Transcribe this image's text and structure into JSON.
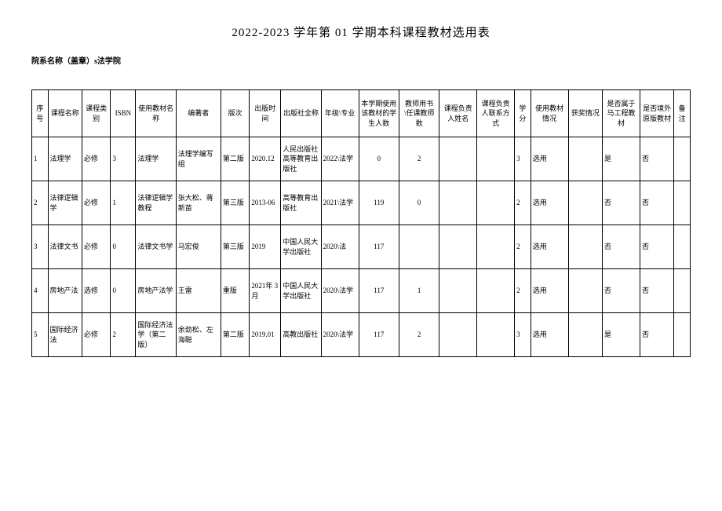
{
  "title": "2022-2023 学年第 01 学期本科课程教材选用表",
  "subtitle": "院系名称（盖章）s法学院",
  "columns": [
    "序号",
    "课程名称",
    "课程类别",
    "ISBN",
    "使用教材名称",
    "编著者",
    "版次",
    "出版时间",
    "出版社全称",
    "年级\\专业",
    "本学期使用该教材的学生人数",
    "教师用书\\任课教师数",
    "课程负责人姓名",
    "课程负责人联系方式",
    "学分",
    "使用教材情况",
    "获奖情况",
    "是否属于马工程教材",
    "是否境外原版教材",
    "备注"
  ],
  "rows": [
    {
      "seq": "1",
      "course_name": "法理学",
      "course_type": "必修",
      "isbn": "3",
      "textbook_name": "法理学",
      "author": "法理学编写组",
      "edition": "第二版",
      "pub_time": "2020.12",
      "publisher": "人民出版社高等教育出版社",
      "grade_major": "2022\\法学",
      "student_count": "0",
      "teacher_count": "2",
      "leader_name": "",
      "leader_contact": "",
      "credit": "3",
      "usage": "选用",
      "award": "",
      "is_ma": "是",
      "is_foreign": "否",
      "note": ""
    },
    {
      "seq": "2",
      "course_name": "法律逻辑学",
      "course_type": "必修",
      "isbn": "1",
      "textbook_name": "法律逻辑学教程",
      "author": "张大松、蒋新苗",
      "edition": "第三版",
      "pub_time": "2013-06",
      "publisher": "高等教育出版社",
      "grade_major": "2021\\法学",
      "student_count": "119",
      "teacher_count": "0",
      "leader_name": "",
      "leader_contact": "",
      "credit": "2",
      "usage": "选用",
      "award": "",
      "is_ma": "否",
      "is_foreign": "否",
      "note": ""
    },
    {
      "seq": "3",
      "course_name": "法律文书",
      "course_type": "必修",
      "isbn": "0",
      "textbook_name": "法律文书学",
      "author": "马宏俊",
      "edition": "第三版",
      "pub_time": "2019",
      "publisher": "中国人民大学出版社",
      "grade_major": "2020\\法",
      "student_count": "117",
      "teacher_count": "",
      "leader_name": "",
      "leader_contact": "",
      "credit": "2",
      "usage": "选用",
      "award": "",
      "is_ma": "否",
      "is_foreign": "否",
      "note": ""
    },
    {
      "seq": "4",
      "course_name": "房地产法",
      "course_type": "选修",
      "isbn": "0",
      "textbook_name": "房地产法学",
      "author": "王雷",
      "edition": "重版",
      "pub_time": "2021年 3月",
      "publisher": "中国人民大学出版社",
      "grade_major": "2020\\法学",
      "student_count": "117",
      "teacher_count": "1",
      "leader_name": "",
      "leader_contact": "",
      "credit": "2",
      "usage": "选用",
      "award": "",
      "is_ma": "否",
      "is_foreign": "否",
      "note": ""
    },
    {
      "seq": "5",
      "course_name": "国际经济法",
      "course_type": "必修",
      "isbn": "2",
      "textbook_name": "国际经济法学（第二版）",
      "author": "余劲松、左海聪",
      "edition": "第二版",
      "pub_time": "2019.01",
      "publisher": "高教出版社",
      "grade_major": "2020\\法学",
      "student_count": "117",
      "teacher_count": "2",
      "leader_name": "",
      "leader_contact": "",
      "credit": "3",
      "usage": "选用",
      "award": "",
      "is_ma": "是",
      "is_foreign": "否",
      "note": ""
    }
  ]
}
